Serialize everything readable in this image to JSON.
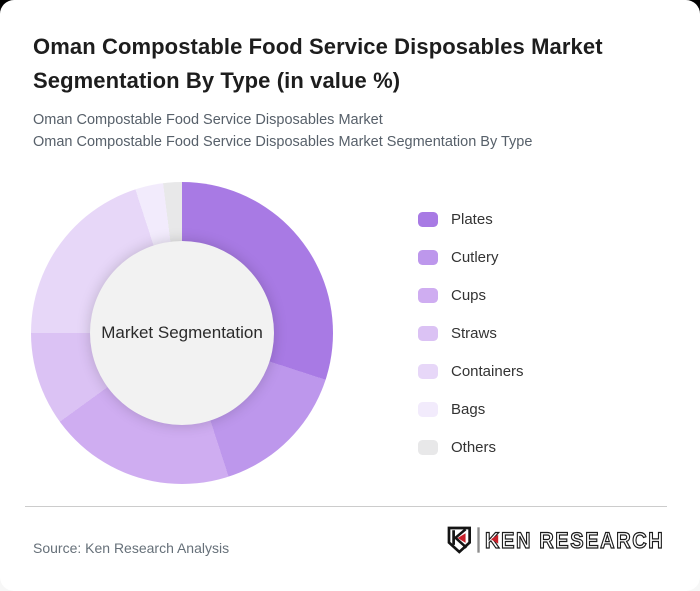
{
  "card": {
    "title": "Oman Compostable Food Service Disposables Market Segmentation By Type (in value %)",
    "subtitle_line1": "Oman Compostable Food Service Disposables Market",
    "subtitle_line2": "Oman Compostable Food Service Disposables Market Segmentation By Type"
  },
  "chart_data": {
    "type": "pie",
    "subtype": "donut",
    "title": "Oman Compostable Food Service Disposables Market Segmentation By Type (in value %)",
    "unit": "value %",
    "center_label": "Market Segmentation",
    "start_angle_deg": 0,
    "direction": "clockwise",
    "legend_position": "right",
    "data_labels_shown": false,
    "categories": [
      "Plates",
      "Cutlery",
      "Cups",
      "Straws",
      "Containers",
      "Bags",
      "Others"
    ],
    "values": [
      30,
      15,
      20,
      10,
      20,
      3,
      2
    ],
    "values_note": "percentages estimated from arc angles; no numeric labels are rendered on the chart",
    "colors": [
      "#a87ae4",
      "#bd97ec",
      "#cfadf1",
      "#dbc2f4",
      "#e7d7f8",
      "#f2ebfc",
      "#e8e8e9"
    ],
    "hole_color": "#f2f2f2"
  },
  "footer": {
    "source": "Source: Ken Research Analysis",
    "brand": "KEN RESEARCH",
    "logo_accent_color": "#c8202a",
    "logo_ink_color": "#1c1c1c"
  }
}
